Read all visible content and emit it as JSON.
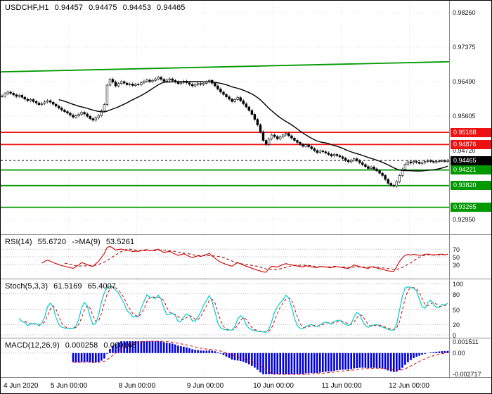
{
  "header": {
    "symbol": "USDCHF,H1",
    "open": "0.94457",
    "high": "0.94475",
    "low": "0.94453",
    "close": "0.94465"
  },
  "colors": {
    "up_candle": "#ffffff",
    "down_candle": "#000000",
    "candle_border": "#000000",
    "ma_line": "#000000",
    "resistance": "#ee1111",
    "support": "#009900",
    "current_price": "#000000",
    "rsi_line": "#cc0000",
    "rsi_ma_line": "#990000",
    "stoch_k": "#00cccc",
    "stoch_d": "#dd0000",
    "macd_histogram": "#0000dd",
    "macd_signal": "#dd0000",
    "grid": "#e4e4e4",
    "level_grid": "#b5b5b5",
    "axis_line": "#8a8a8a"
  },
  "time_axis": {
    "labels": [
      {
        "text": "4 Jun 2020",
        "bar": 0
      },
      {
        "text": "5 Jun 00:00",
        "bar": 24
      },
      {
        "text": "8 Jun 00:00",
        "bar": 48
      },
      {
        "text": "9 Jun 00:00",
        "bar": 72
      },
      {
        "text": "10 Jun 00:00",
        "bar": 96
      },
      {
        "text": "11 Jun 00:00",
        "bar": 120
      },
      {
        "text": "12 Jun 00:00",
        "bar": 144
      }
    ]
  },
  "indicators": {
    "rsi": {
      "label": "RSI(14)",
      "value": "55.6720",
      "ma_label": "->MA(9)",
      "ma_value": "53.5261",
      "period": 14,
      "ma_period": 9,
      "levels": [
        70,
        50,
        30
      ]
    },
    "stoch": {
      "label": "Stoch(5,3,3)",
      "value_k": "61.5169",
      "value_d": "65.4007",
      "k_period": 5,
      "slowing": 3,
      "d_period": 3,
      "levels": [
        100,
        80,
        50,
        20,
        0
      ]
    },
    "macd": {
      "label": "MACD(12,26,9)",
      "value_main": "0.000258",
      "value_signal": "0.000165",
      "fast": 12,
      "slow": 26,
      "signal": 9,
      "axis_labels": [
        {
          "text": "0.001511",
          "value": 0.001511
        },
        {
          "text": "0.00",
          "value": 0
        },
        {
          "text": "-0.002717",
          "value": -0.002717
        }
      ],
      "scale_max": 0.001511,
      "scale_min": -0.002717
    }
  },
  "chart_data": [
    {
      "type": "candlestick",
      "title": "USDCHF hourly price",
      "ylim": [
        0.9295,
        0.9826
      ],
      "y_ticks": [
        "0.98260",
        "0.97375",
        "0.96490",
        "0.95605",
        "0.94720",
        "0.93835",
        "0.92950"
      ],
      "bars_per_day": 24,
      "wick": 0.0004,
      "ma_period": 21,
      "closes": [
        0.9612,
        0.9618,
        0.9622,
        0.9619,
        0.9615,
        0.9611,
        0.9614,
        0.9609,
        0.9604,
        0.96,
        0.9603,
        0.9598,
        0.9594,
        0.959,
        0.9593,
        0.9597,
        0.96,
        0.9596,
        0.9591,
        0.9586,
        0.9581,
        0.9576,
        0.9572,
        0.9568,
        0.9563,
        0.9558,
        0.9561,
        0.9565,
        0.957,
        0.9566,
        0.956,
        0.9554,
        0.955,
        0.9556,
        0.9562,
        0.9574,
        0.959,
        0.964,
        0.9655,
        0.9648,
        0.9638,
        0.9644,
        0.9649,
        0.9645,
        0.9641,
        0.9643,
        0.9639,
        0.9642,
        0.9641,
        0.9646,
        0.965,
        0.9653,
        0.9649,
        0.9652,
        0.9656,
        0.966,
        0.9655,
        0.965,
        0.9653,
        0.9656,
        0.9652,
        0.9648,
        0.9644,
        0.9647,
        0.965,
        0.9646,
        0.9642,
        0.9638,
        0.9641,
        0.9644,
        0.9642,
        0.9645,
        0.9648,
        0.9652,
        0.9645,
        0.9638,
        0.963,
        0.9622,
        0.9616,
        0.961,
        0.9604,
        0.9598,
        0.9603,
        0.9608,
        0.96,
        0.9592,
        0.9584,
        0.9575,
        0.9565,
        0.9552,
        0.9538,
        0.952,
        0.9498,
        0.9488,
        0.9502,
        0.9512,
        0.9508,
        0.9502,
        0.9507,
        0.9512,
        0.9516,
        0.951,
        0.9504,
        0.9498,
        0.9493,
        0.9488,
        0.9483,
        0.9487,
        0.9482,
        0.9477,
        0.9472,
        0.9467,
        0.9471,
        0.9469,
        0.9466,
        0.9462,
        0.9458,
        0.9462,
        0.9459,
        0.9456,
        0.9452,
        0.9447,
        0.9443,
        0.9447,
        0.9451,
        0.9446,
        0.9441,
        0.9436,
        0.9431,
        0.9426,
        0.943,
        0.9425,
        0.942,
        0.9414,
        0.9408,
        0.9398,
        0.9388,
        0.9383,
        0.9381,
        0.9392,
        0.9408,
        0.9424,
        0.9437,
        0.9443,
        0.944,
        0.9444,
        0.9442,
        0.9439,
        0.9441,
        0.9444,
        0.9446,
        0.9444,
        0.9442,
        0.9444,
        0.9445,
        0.9446,
        0.9444,
        0.94465
      ],
      "price_lines": [
        {
          "value": 0.95188,
          "type": "resistance",
          "label": "0.95188"
        },
        {
          "value": 0.94876,
          "type": "resistance",
          "label": "0.94876"
        },
        {
          "value": 0.94465,
          "type": "current-price",
          "label": "0.94465"
        },
        {
          "value": 0.94221,
          "type": "support",
          "label": "0.94221"
        },
        {
          "value": 0.9382,
          "type": "support",
          "label": "0.93820"
        },
        {
          "value": 0.93265,
          "type": "support",
          "label": "0.93265"
        }
      ],
      "trendline": {
        "start_value": 0.9674,
        "end_value": 0.97,
        "type": "support"
      }
    },
    {
      "type": "line",
      "name": "RSI",
      "derived_from": "closes",
      "params": [
        14,
        9
      ],
      "last_values": [
        55.672,
        53.5261
      ],
      "ylim": [
        0,
        100
      ]
    },
    {
      "type": "line",
      "name": "Stochastic",
      "derived_from": "closes",
      "params": [
        5,
        3,
        3
      ],
      "last_values": [
        61.5169,
        65.4007
      ],
      "ylim": [
        0,
        100
      ]
    },
    {
      "type": "bar",
      "name": "MACD",
      "derived_from": "closes",
      "params": [
        12,
        26,
        9
      ],
      "last_values": [
        0.000258,
        0.000165
      ],
      "ylim": [
        -0.002717,
        0.001511
      ]
    }
  ]
}
